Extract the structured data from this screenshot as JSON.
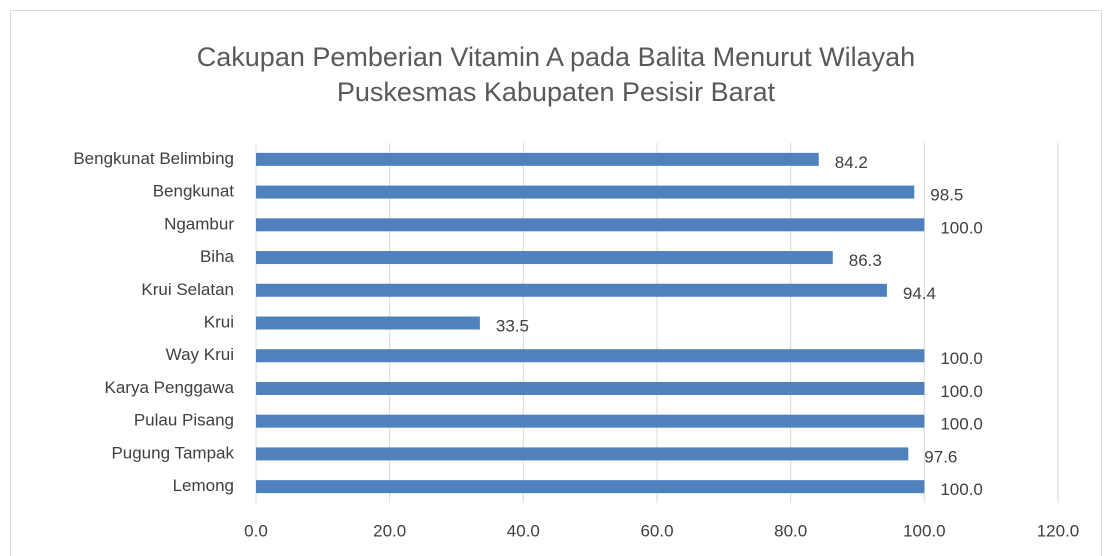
{
  "chart_data": {
    "type": "bar",
    "orientation": "horizontal",
    "title": "Cakupan Pemberian Vitamin A pada Balita Menurut Wilayah Puskesmas Kabupaten Pesisir Barat",
    "categories": [
      "Bengkunat Belimbing",
      "Bengkunat",
      "Ngambur",
      "Biha",
      "Krui Selatan",
      "Krui",
      "Way Krui",
      "Karya Penggawa",
      "Pulau Pisang",
      "Pugung Tampak",
      "Lemong"
    ],
    "values": [
      84.2,
      98.5,
      100,
      86.3,
      94.4,
      33.5,
      100,
      100,
      100,
      97.6,
      100
    ],
    "value_labels": [
      "84.2",
      "98.5",
      "100.0",
      "86.3",
      "94.4",
      "33.5",
      "100.0",
      "100.0",
      "100.0",
      "97.6",
      "100.0"
    ],
    "color": "#4f81bd",
    "xlim": [
      0,
      120
    ],
    "xticks": [
      {
        "value": 0,
        "label": "0.0"
      },
      {
        "value": 20,
        "label": "20.0"
      },
      {
        "value": 40,
        "label": "40.0"
      },
      {
        "value": 60,
        "label": "60.0"
      },
      {
        "value": 80,
        "label": "80.0"
      },
      {
        "value": 100,
        "label": "100.0"
      },
      {
        "value": 120,
        "label": "120.0"
      }
    ],
    "grid": true
  }
}
